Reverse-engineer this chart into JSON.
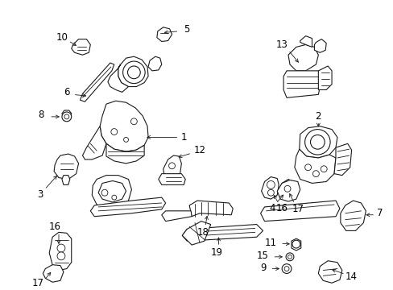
{
  "bg_color": "#ffffff",
  "fig_width": 4.89,
  "fig_height": 3.6,
  "dpi": 100,
  "line_color": "#1a1a1a",
  "label_fontsize": 8.5,
  "label_color": "#000000"
}
